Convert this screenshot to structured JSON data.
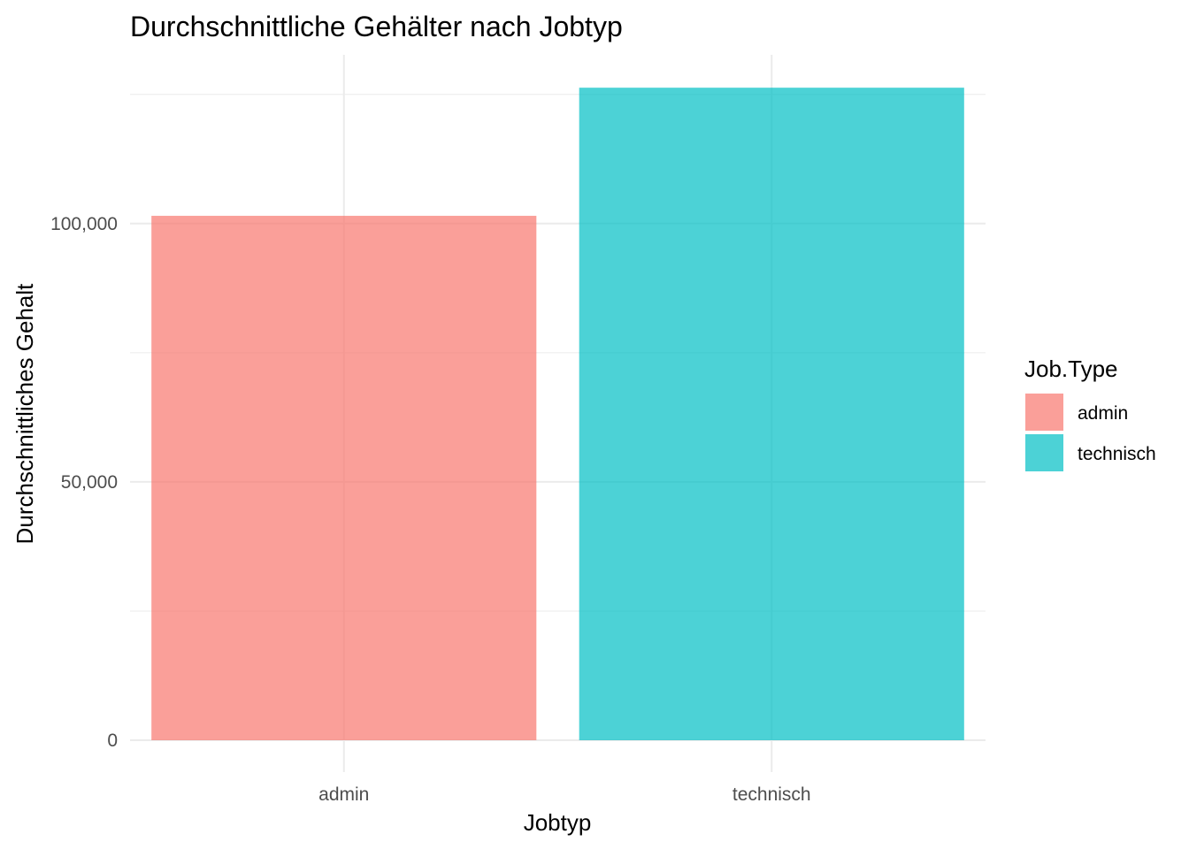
{
  "chart_data": {
    "type": "bar",
    "title": "Durchschnittliche Gehälter nach Jobtyp",
    "xlabel": "Jobtyp",
    "ylabel": "Durchschnittliches Gehalt",
    "categories": [
      "admin",
      "technisch"
    ],
    "values": [
      101500,
      126300
    ],
    "colors": [
      "#F8766D",
      "#00BFC4"
    ],
    "ylim": [
      0,
      131000
    ],
    "y_ticks": [
      0,
      50000,
      100000
    ],
    "y_tick_labels": [
      "0",
      "50,000",
      "100,000"
    ],
    "y_minor_ticks": [
      25000,
      75000,
      125000
    ],
    "grid": true,
    "legend": {
      "title": "Job.Type",
      "placement": "right",
      "entries": [
        "admin",
        "technisch"
      ]
    }
  }
}
